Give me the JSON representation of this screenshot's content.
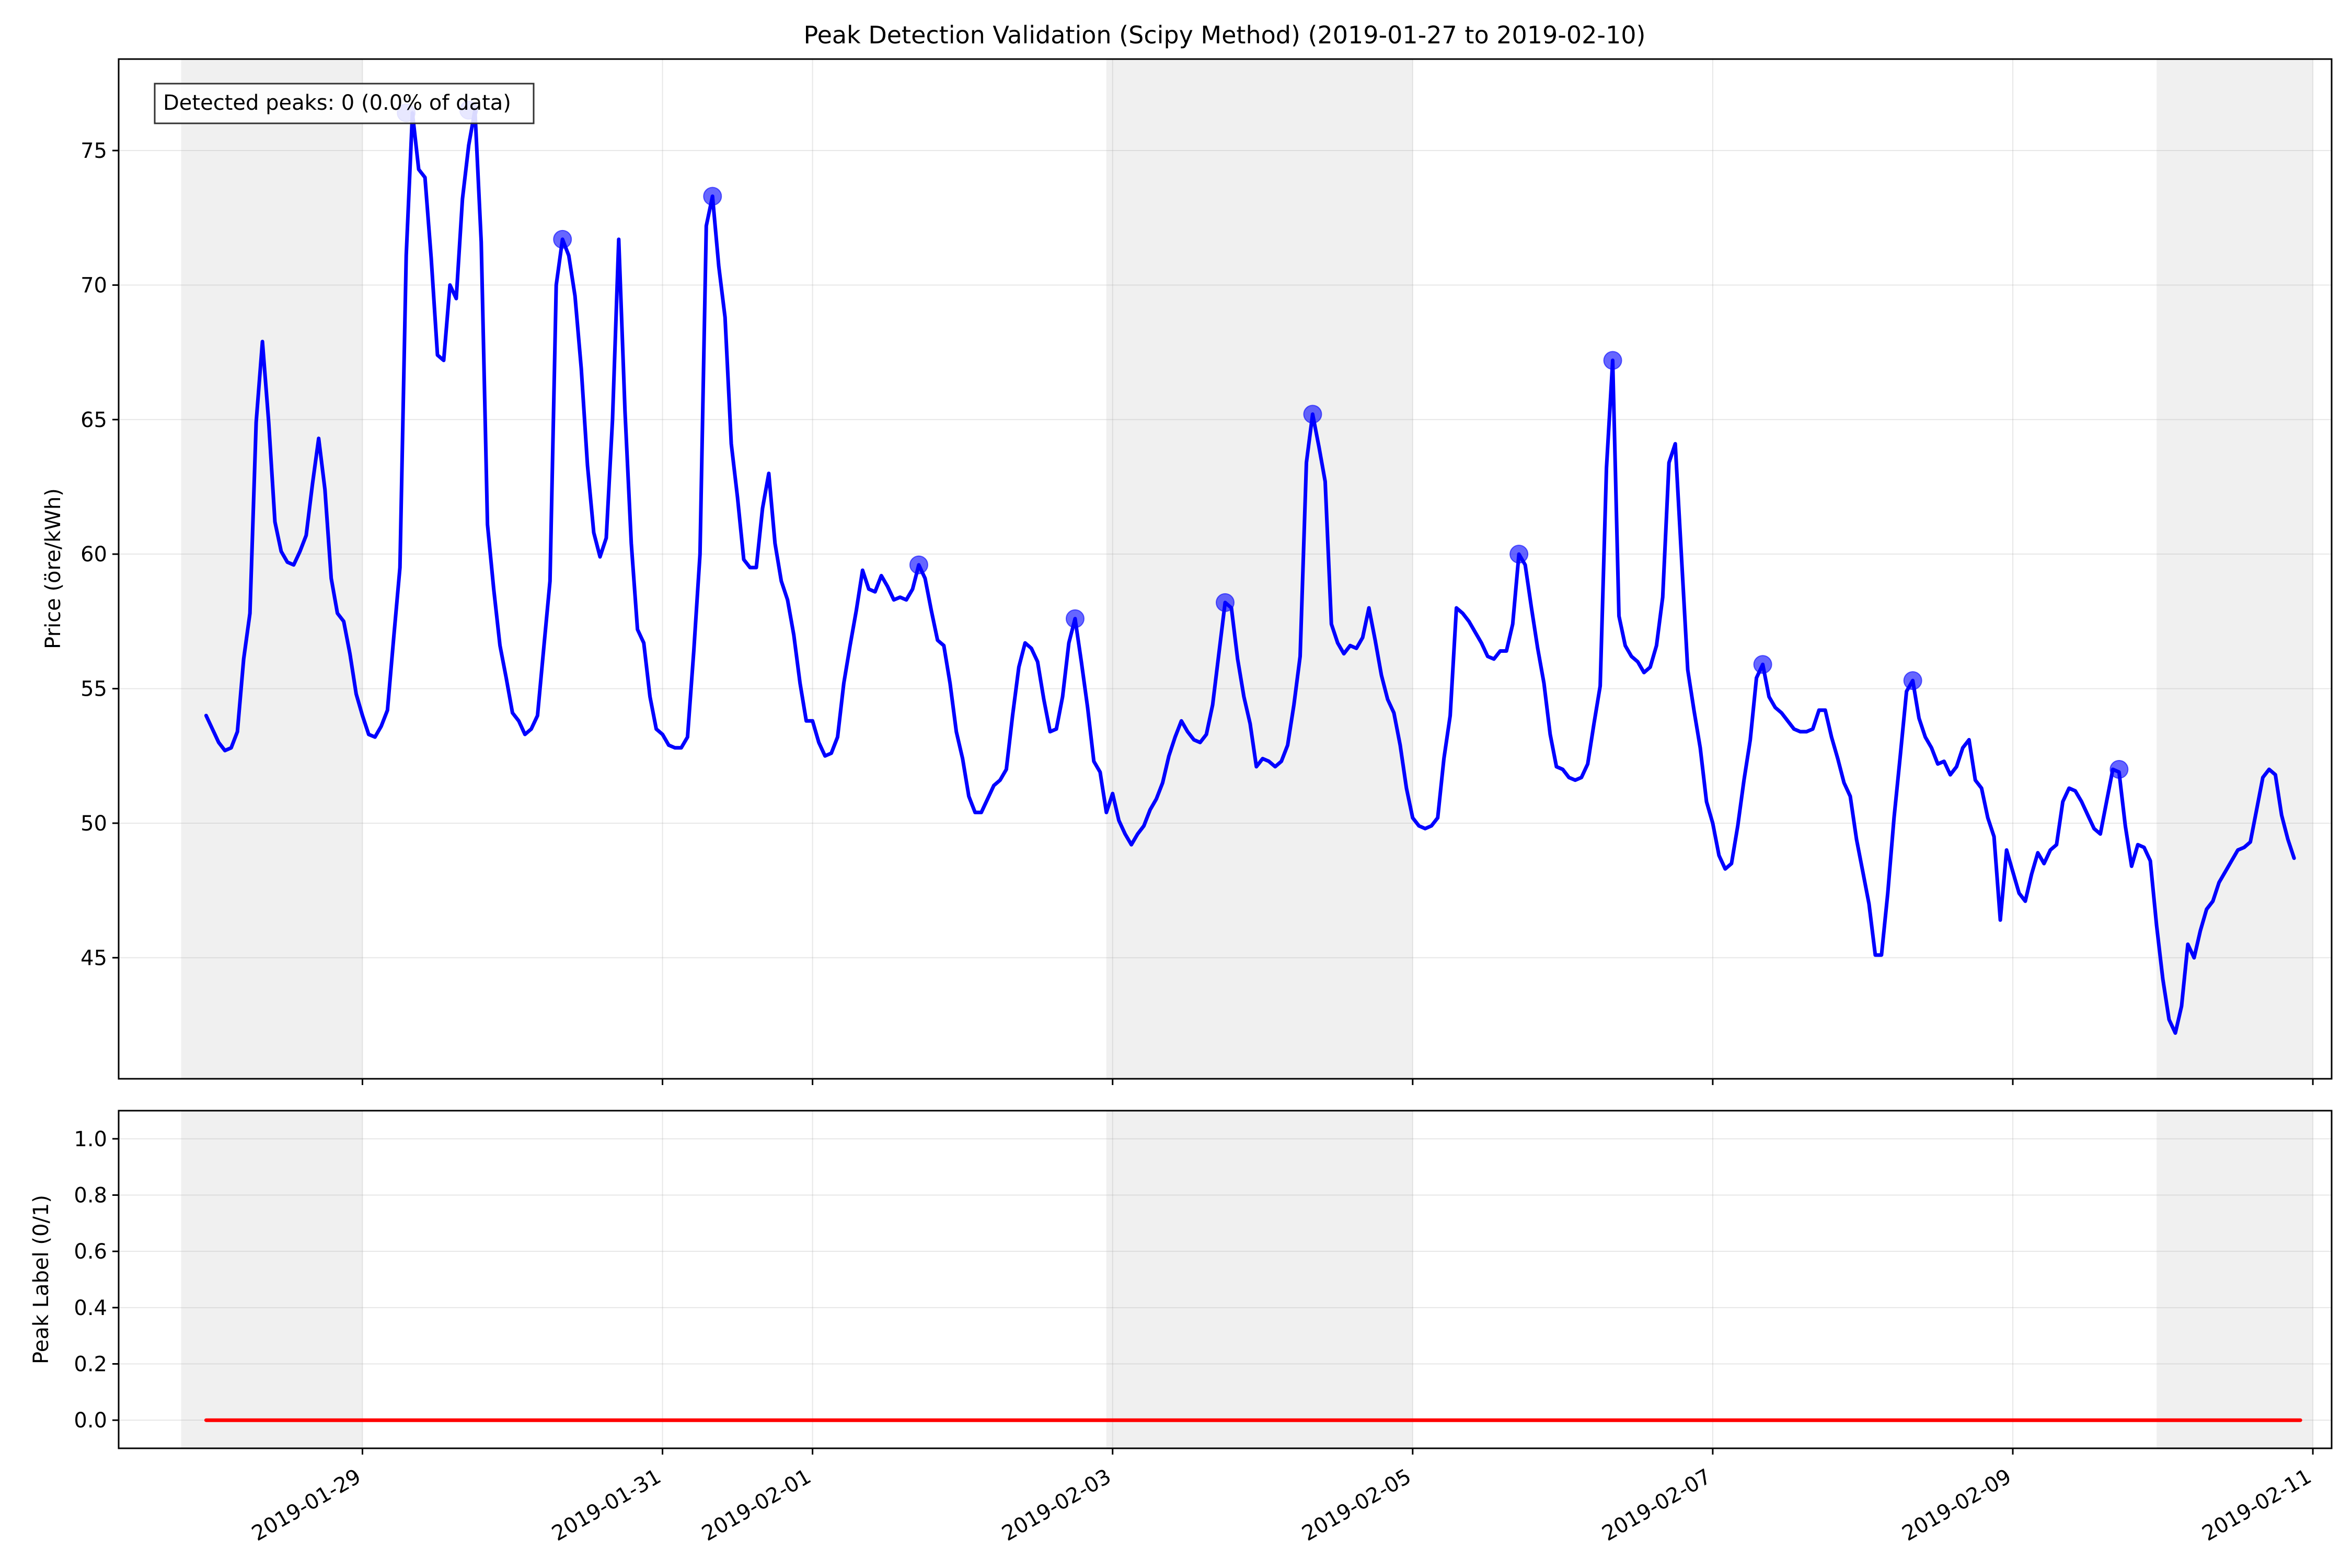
{
  "figure": {
    "title": "Peak Detection Validation (Scipy Method) (2019-01-27 to 2019-02-10)",
    "annotation": "Detected peaks: 0 (0.0% of data)"
  },
  "colors": {
    "price_line": "#0000ff",
    "peak_marker": "#0000ff",
    "label_line": "#ff0000",
    "weekend_shade": "#d9d9d9",
    "grid": "#b0b0b0"
  },
  "chart_data": [
    {
      "type": "line",
      "panel": "top",
      "title": "Peak Detection Validation (Scipy Method) (2019-01-27 to 2019-02-10)",
      "ylabel": "Price (öre/kWh)",
      "xlabel": "",
      "ylim": [
        40.5,
        78.4
      ],
      "yticks": [
        45,
        50,
        55,
        60,
        65,
        70,
        75
      ],
      "xlim": [
        "2019-01-27T09:00",
        "2019-02-11T03:00"
      ],
      "xticks": [
        "2019-01-29",
        "2019-01-31",
        "2019-02-01",
        "2019-02-03",
        "2019-02-05",
        "2019-02-07",
        "2019-02-09",
        "2019-02-11"
      ],
      "grid": true,
      "shaded_weekends": [
        [
          "2019-01-27T19:00",
          "2019-01-29T00:00"
        ],
        [
          "2019-02-02T23:00",
          "2019-02-05T00:00"
        ],
        [
          "2019-02-09T23:00",
          "2019-02-11T00:00"
        ]
      ],
      "series": [
        {
          "name": "",
          "start": "2019-01-27T23:00",
          "step_hours": 1,
          "values": [
            54.0,
            53.5,
            53.0,
            52.7,
            52.8,
            53.4,
            56.1,
            57.8,
            64.9,
            67.9,
            64.9,
            61.2,
            60.1,
            59.7,
            59.6,
            60.1,
            60.7,
            62.6,
            64.3,
            62.4,
            59.1,
            57.8,
            57.5,
            56.3,
            54.8,
            54.0,
            53.3,
            53.2,
            53.6,
            54.2,
            56.9,
            59.5,
            71.1,
            76.4,
            74.3,
            74.0,
            71.0,
            67.4,
            67.2,
            70.0,
            69.5,
            73.2,
            75.2,
            76.5,
            71.6,
            61.1,
            58.7,
            56.6,
            55.4,
            54.1,
            53.8,
            53.3,
            53.5,
            54.0,
            56.5,
            59.0,
            70.0,
            71.7,
            71.1,
            69.6,
            66.9,
            63.3,
            60.8,
            59.9,
            60.6,
            65.0,
            71.7,
            65.3,
            60.4,
            57.2,
            56.7,
            54.7,
            53.5,
            53.3,
            52.9,
            52.8,
            52.8,
            53.2,
            56.4,
            60.0,
            72.2,
            73.3,
            70.7,
            68.8,
            64.1,
            62.1,
            59.8,
            59.5,
            59.5,
            61.7,
            63.0,
            60.4,
            59.0,
            58.3,
            57.0,
            55.2,
            53.8,
            53.8,
            53.0,
            52.5,
            52.6,
            53.2,
            55.2,
            56.6,
            57.9,
            59.4,
            58.7,
            58.6,
            59.2,
            58.8,
            58.3,
            58.4,
            58.3,
            58.7,
            59.6,
            59.1,
            57.9,
            56.8,
            56.6,
            55.2,
            53.4,
            52.4,
            51.0,
            50.4,
            50.4,
            50.9,
            51.4,
            51.6,
            52.0,
            54.0,
            55.8,
            56.7,
            56.5,
            56.0,
            54.6,
            53.4,
            53.5,
            54.7,
            56.7,
            57.6,
            56.0,
            54.3,
            52.3,
            51.9,
            50.4,
            51.1,
            50.1,
            49.6,
            49.2,
            49.6,
            49.9,
            50.5,
            50.9,
            51.5,
            52.5,
            53.2,
            53.8,
            53.4,
            53.1,
            53.0,
            53.3,
            54.4,
            56.3,
            58.2,
            58.0,
            56.1,
            54.7,
            53.7,
            52.1,
            52.4,
            52.3,
            52.1,
            52.3,
            52.9,
            54.4,
            56.2,
            63.4,
            65.2,
            64.0,
            62.7,
            57.4,
            56.7,
            56.3,
            56.6,
            56.5,
            56.9,
            58.0,
            56.8,
            55.5,
            54.6,
            54.1,
            52.9,
            51.3,
            50.2,
            49.9,
            49.8,
            49.9,
            50.2,
            52.4,
            54.0,
            58.0,
            57.8,
            57.5,
            57.1,
            56.7,
            56.2,
            56.1,
            56.4,
            56.4,
            57.4,
            60.0,
            59.6,
            58.0,
            56.5,
            55.2,
            53.3,
            52.1,
            52.0,
            51.7,
            51.6,
            51.7,
            52.2,
            53.7,
            55.1,
            63.2,
            67.2,
            57.7,
            56.6,
            56.2,
            56.0,
            55.6,
            55.8,
            56.6,
            58.4,
            63.4,
            64.1,
            59.9,
            55.7,
            54.2,
            52.8,
            50.8,
            50.0,
            48.8,
            48.3,
            48.5,
            49.9,
            51.6,
            53.1,
            55.4,
            55.9,
            54.7,
            54.3,
            54.1,
            53.8,
            53.5,
            53.4,
            53.4,
            53.5,
            54.2,
            54.2,
            53.2,
            52.4,
            51.5,
            51.0,
            49.4,
            48.2,
            47.0,
            45.1,
            45.1,
            47.4,
            50.2,
            52.5,
            54.9,
            55.3,
            53.9,
            53.2,
            52.8,
            52.2,
            52.3,
            51.8,
            52.1,
            52.8,
            53.1,
            51.6,
            51.3,
            50.2,
            49.5,
            46.4,
            49.0,
            48.2,
            47.4,
            47.1,
            48.1,
            48.9,
            48.5,
            49.0,
            49.2,
            50.8,
            51.3,
            51.2,
            50.8,
            50.3,
            49.8,
            49.6,
            50.8,
            52.0,
            51.9,
            49.9,
            48.4,
            49.2,
            49.1,
            48.6,
            46.2,
            44.2,
            42.7,
            42.2,
            43.2,
            45.5,
            45.0,
            46.0,
            46.8,
            47.1,
            47.8,
            48.2,
            48.6,
            49.0,
            49.1,
            49.3,
            50.5,
            51.7,
            52.0,
            51.8,
            50.3,
            49.4,
            48.7
          ]
        }
      ],
      "markers": [
        {
          "x": "2019-01-29T07:00",
          "y": 76.4
        },
        {
          "x": "2019-01-29T17:00",
          "y": 76.5
        },
        {
          "x": "2019-01-30T08:00",
          "y": 71.7
        },
        {
          "x": "2019-01-31T08:00",
          "y": 73.3
        },
        {
          "x": "2019-02-01T17:00",
          "y": 59.6
        },
        {
          "x": "2019-02-02T18:00",
          "y": 57.6
        },
        {
          "x": "2019-02-03T18:00",
          "y": 58.2
        },
        {
          "x": "2019-02-04T08:00",
          "y": 65.2
        },
        {
          "x": "2019-02-05T17:00",
          "y": 60.0
        },
        {
          "x": "2019-02-06T08:00",
          "y": 67.2
        },
        {
          "x": "2019-02-07T08:00",
          "y": 55.9
        },
        {
          "x": "2019-02-08T08:00",
          "y": 55.3
        },
        {
          "x": "2019-02-09T17:00",
          "y": 52.0
        }
      ]
    },
    {
      "type": "line",
      "panel": "bottom",
      "ylabel": "Peak Label (0/1)",
      "xlabel": "",
      "ylim": [
        -0.1,
        1.1
      ],
      "yticks": [
        "0.0",
        "0.2",
        "0.4",
        "0.6",
        "0.8",
        "1.0"
      ],
      "xlim": [
        "2019-01-27T09:00",
        "2019-02-11T03:00"
      ],
      "xticks": [
        "2019-01-29",
        "2019-01-31",
        "2019-02-01",
        "2019-02-03",
        "2019-02-05",
        "2019-02-07",
        "2019-02-09",
        "2019-02-11"
      ],
      "grid": true,
      "shaded_weekends": [
        [
          "2019-01-27T19:00",
          "2019-01-29T00:00"
        ],
        [
          "2019-02-02T23:00",
          "2019-02-05T00:00"
        ],
        [
          "2019-02-09T23:00",
          "2019-02-11T00:00"
        ]
      ],
      "series": [
        {
          "name": "",
          "x": [
            "2019-01-27T23:00",
            "2019-02-10T22:00"
          ],
          "values": [
            0,
            0
          ]
        }
      ]
    }
  ]
}
